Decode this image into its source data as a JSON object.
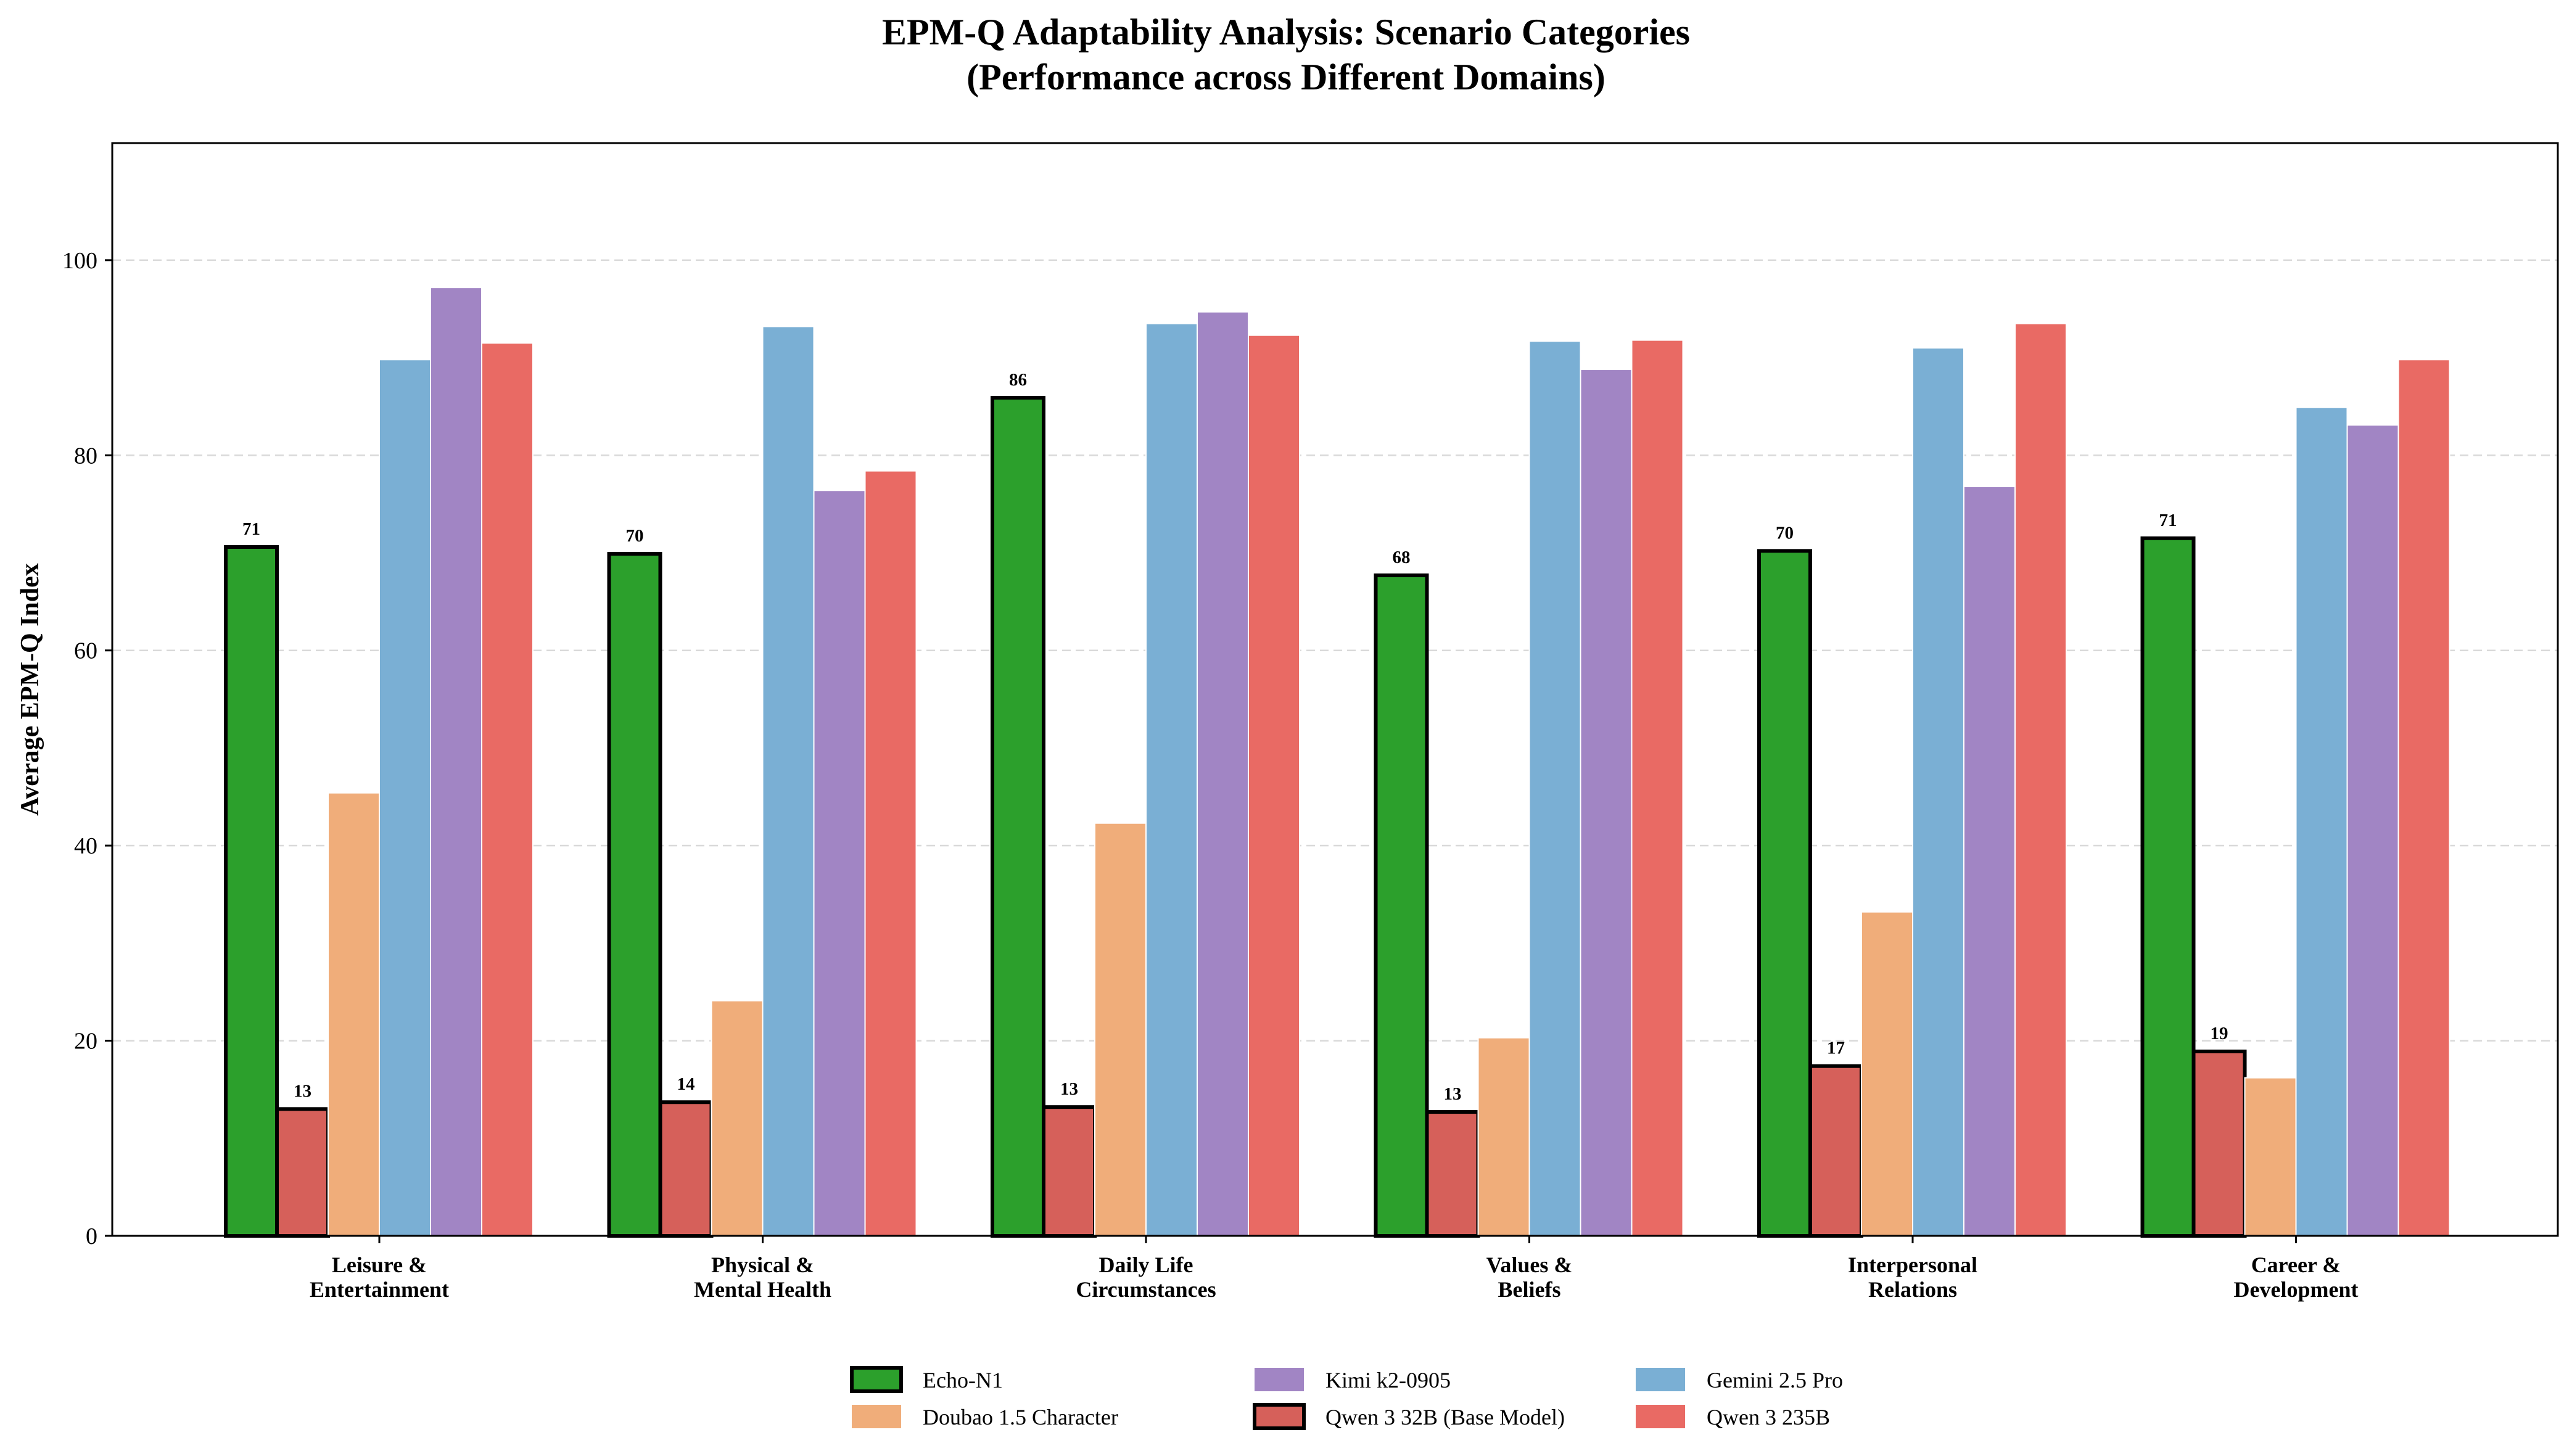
{
  "chart_data": {
    "type": "bar",
    "title": "EPM-Q Adaptability Analysis: Scenario Categories",
    "subtitle": "(Performance across Different Domains)",
    "xlabel": "",
    "ylabel": "Average EPM-Q Index",
    "ylim": [
      0,
      112
    ],
    "yticks": [
      0,
      20,
      40,
      60,
      80,
      100
    ],
    "grid": "horizontal dashed",
    "legend_position": "bottom-center",
    "categories": [
      [
        "Leisure &",
        "Entertainment"
      ],
      [
        "Physical &",
        "Mental Health"
      ],
      [
        "Daily Life",
        "Circumstances"
      ],
      [
        "Values &",
        "Beliefs"
      ],
      [
        "Interpersonal",
        "Relations"
      ],
      [
        "Career &",
        "Development"
      ]
    ],
    "series": [
      {
        "name": "Echo-N1",
        "color": "#2ca02c",
        "outlined": true,
        "show_labels": true,
        "values": [
          70.6,
          69.9,
          85.9,
          67.7,
          70.2,
          71.5
        ],
        "labels": [
          "71",
          "70",
          "86",
          "68",
          "70",
          "71"
        ]
      },
      {
        "name": "Qwen 3 32B (Base Model)",
        "color": "#d6605a",
        "outlined": true,
        "show_labels": true,
        "values": [
          13.0,
          13.7,
          13.2,
          12.7,
          17.4,
          18.9
        ],
        "labels": [
          "13",
          "14",
          "13",
          "13",
          "17",
          "19"
        ]
      },
      {
        "name": "Doubao 1.5 Character",
        "color": "#f0ad7a",
        "outlined": false,
        "show_labels": false,
        "values": [
          45.4,
          24.1,
          42.3,
          20.3,
          33.2,
          16.2
        ]
      },
      {
        "name": "Gemini 2.5 Pro",
        "color": "#7aafd4",
        "outlined": false,
        "show_labels": false,
        "values": [
          89.8,
          93.2,
          93.5,
          91.7,
          91.0,
          84.9
        ]
      },
      {
        "name": "Kimi k2-0905",
        "color": "#a185c4",
        "outlined": false,
        "show_labels": false,
        "values": [
          97.2,
          76.4,
          94.7,
          88.8,
          76.8,
          83.1
        ]
      },
      {
        "name": "Qwen 3 235B",
        "color": "#e96a64",
        "outlined": false,
        "show_labels": false,
        "values": [
          91.5,
          78.4,
          92.3,
          91.8,
          93.5,
          89.8
        ]
      }
    ],
    "legend_order": [
      0,
      2,
      4,
      1,
      3,
      5
    ]
  }
}
